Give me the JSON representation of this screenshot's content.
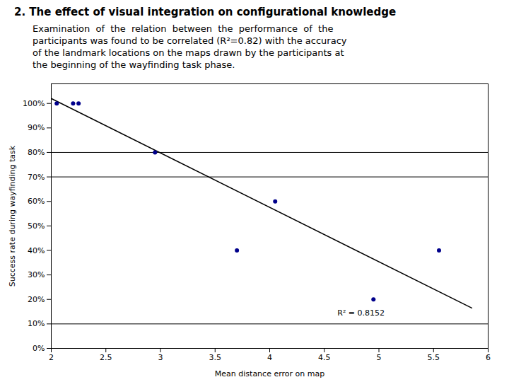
{
  "chart_data": {
    "type": "scatter",
    "title": "2. The effect of visual integration on configurational knowledge",
    "subtitle": [
      "Examination  of  the  relation  between  the  performance  of  the",
      "participants was found to be correlated (R²=0.82) with the accuracy",
      "of the landmark locations on the maps drawn by the participants at",
      "the beginning of the wayfinding task phase."
    ],
    "x": [
      2.05,
      2.2,
      2.25,
      2.95,
      3.7,
      4.05,
      4.95,
      5.55
    ],
    "values": [
      1.0,
      1.0,
      1.0,
      0.8,
      0.4,
      0.6,
      0.2,
      0.4
    ],
    "color": "#00008B",
    "marker": "circle",
    "trendline": {
      "x": [
        2.0,
        5.85
      ],
      "y": [
        1.02,
        0.165
      ],
      "color": "#000000"
    },
    "hlines": {
      "values": [
        0.1,
        0.7,
        0.8
      ],
      "color": "#000000"
    },
    "annotations": [
      {
        "text": "R² = 0.8152",
        "x": 4.62,
        "y": 0.145
      }
    ],
    "xlabel": "Mean distance error on map",
    "ylabel": "Success rate during wayfinding task",
    "xlim": [
      2,
      6
    ],
    "ylim": [
      0,
      1.08
    ],
    "xticks": [
      2,
      2.5,
      3,
      3.5,
      4,
      4.5,
      5,
      5.5,
      6
    ],
    "yticks": [
      {
        "value": 0.0,
        "label": "0%"
      },
      {
        "value": 0.1,
        "label": "10%"
      },
      {
        "value": 0.2,
        "label": "20%"
      },
      {
        "value": 0.3,
        "label": "30%"
      },
      {
        "value": 0.4,
        "label": "40%"
      },
      {
        "value": 0.5,
        "label": "50%"
      },
      {
        "value": 0.6,
        "label": "60%"
      },
      {
        "value": 0.7,
        "label": "70%"
      },
      {
        "value": 0.8,
        "label": "80%"
      },
      {
        "value": 0.9,
        "label": "90%"
      },
      {
        "value": 1.0,
        "label": "100%"
      }
    ]
  }
}
